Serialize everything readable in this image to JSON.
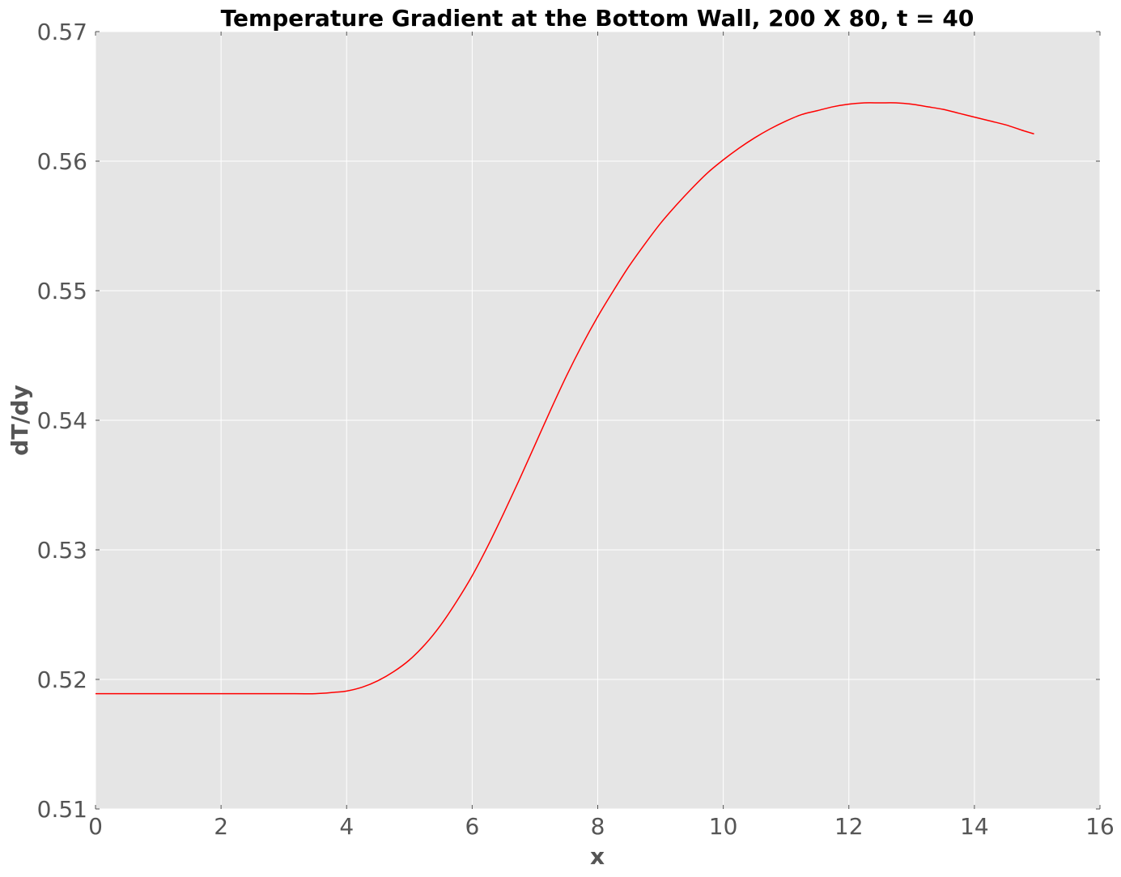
{
  "chart_data": {
    "type": "line",
    "title": "Temperature Gradient at the Bottom Wall, 200 X 80, t = 40",
    "xlabel": "x",
    "ylabel": "dT/dy",
    "xlim": [
      0,
      16
    ],
    "ylim": [
      0.51,
      0.57
    ],
    "x_ticks": [
      "0",
      "2",
      "4",
      "6",
      "8",
      "10",
      "12",
      "14",
      "16"
    ],
    "y_ticks": [
      "0.51",
      "0.52",
      "0.53",
      "0.54",
      "0.55",
      "0.56",
      "0.57"
    ],
    "grid": true,
    "legend": "none",
    "colors": {
      "background": "#e5e5e5",
      "grid": "#ffffff",
      "line": "#ff0000",
      "tick_text": "#555555"
    },
    "series": [
      {
        "x": [
          0,
          0.5,
          1,
          1.5,
          2,
          2.5,
          3,
          3.5,
          3.8,
          4,
          4.25,
          4.5,
          4.75,
          5,
          5.25,
          5.5,
          5.75,
          6,
          6.25,
          6.5,
          6.75,
          7,
          7.25,
          7.5,
          7.75,
          8,
          8.25,
          8.5,
          8.75,
          9,
          9.25,
          9.5,
          9.75,
          10,
          10.25,
          10.5,
          10.75,
          11,
          11.25,
          11.5,
          11.75,
          12,
          12.25,
          12.5,
          12.75,
          13,
          13.25,
          13.5,
          13.75,
          14,
          14.25,
          14.5,
          14.75,
          14.95
        ],
        "y": [
          0.5189,
          0.5189,
          0.5189,
          0.5189,
          0.5189,
          0.5189,
          0.5189,
          0.5189,
          0.519,
          0.5191,
          0.5194,
          0.5199,
          0.5206,
          0.5215,
          0.5227,
          0.5242,
          0.526,
          0.528,
          0.5303,
          0.5328,
          0.5354,
          0.5381,
          0.5408,
          0.5434,
          0.5458,
          0.548,
          0.55,
          0.5519,
          0.5536,
          0.5552,
          0.5566,
          0.5579,
          0.5591,
          0.5601,
          0.561,
          0.5618,
          0.5625,
          0.5631,
          0.5636,
          0.5639,
          0.5642,
          0.5644,
          0.5645,
          0.5645,
          0.5645,
          0.5644,
          0.5642,
          0.564,
          0.5637,
          0.5634,
          0.5631,
          0.5628,
          0.5624,
          0.5621
        ]
      }
    ]
  }
}
